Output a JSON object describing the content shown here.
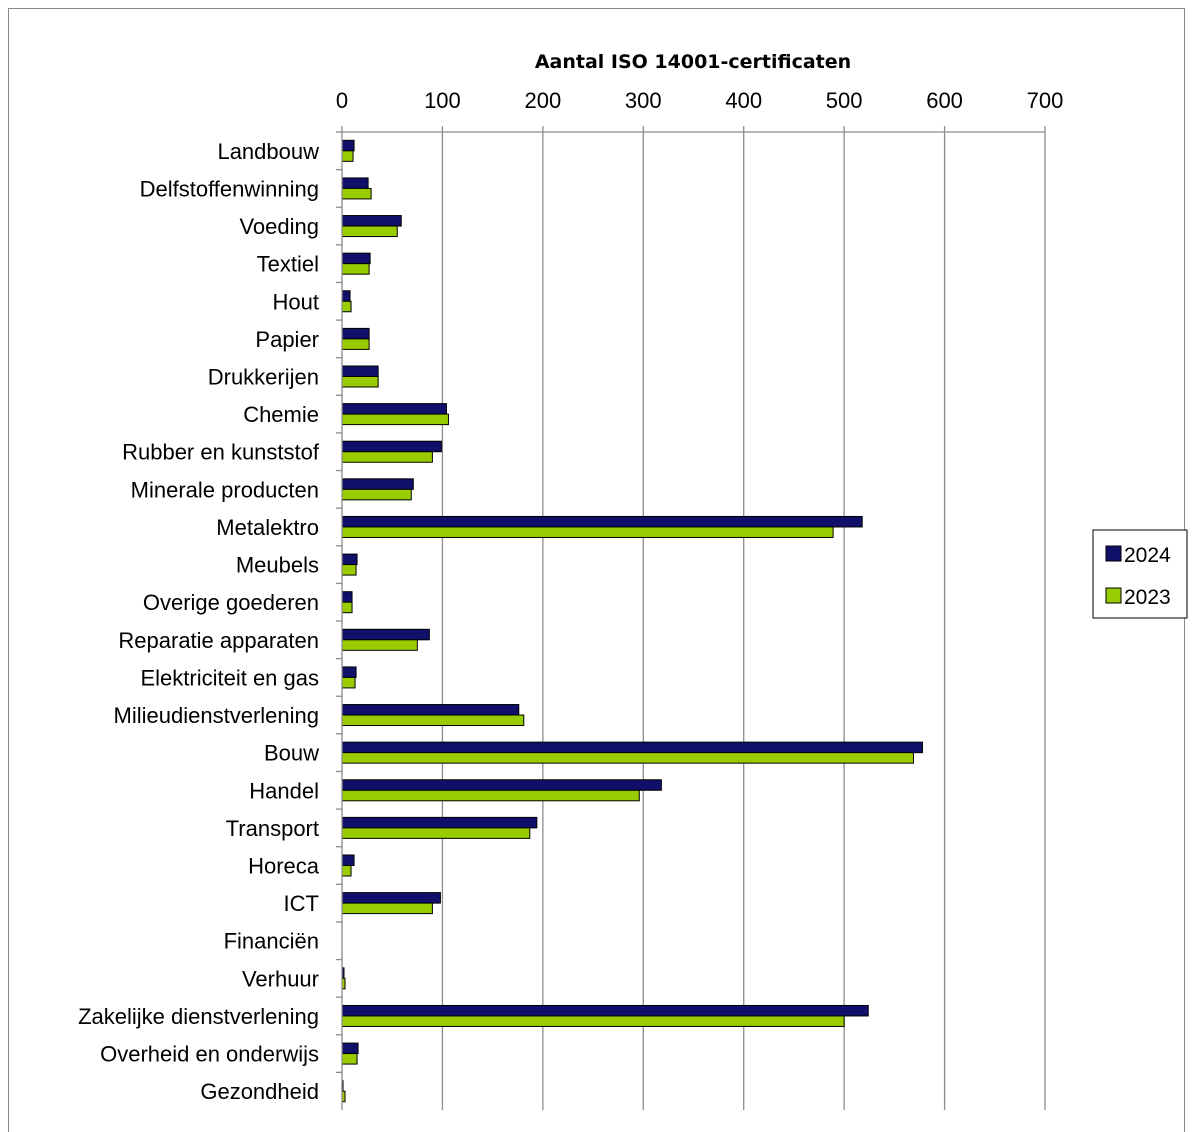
{
  "chart_data": {
    "type": "bar",
    "orientation": "horizontal",
    "title": "Aantal ISO 14001-certificaten",
    "axis_position": "top",
    "xlim": [
      0,
      700
    ],
    "ticks": [
      "0",
      "100",
      "200",
      "300",
      "400",
      "500",
      "600",
      "700"
    ],
    "tick_values": [
      0,
      100,
      200,
      300,
      400,
      500,
      600,
      700
    ],
    "grid": true,
    "legend_position": "right",
    "categories": [
      "Landbouw",
      "Delfstoffenwinning",
      "Voeding",
      "Textiel",
      "Hout",
      "Papier",
      "Drukkerijen",
      "Chemie",
      "Rubber en kunststof",
      "Minerale producten",
      "Metalektro",
      "Meubels",
      "Overige goederen",
      "Reparatie apparaten",
      "Elektriciteit en gas",
      "Milieudienstverlening",
      "Bouw",
      "Handel",
      "Transport",
      "Horeca",
      "ICT",
      "Financiën",
      "Verhuur",
      "Zakelijke dienstverlening",
      "Overheid en onderwijs",
      "Gezondheid"
    ],
    "series": [
      {
        "name": "2024",
        "color": "#10106b",
        "values": [
          12,
          26,
          59,
          28,
          8,
          27,
          36,
          104,
          99,
          71,
          518,
          15,
          10,
          87,
          14,
          176,
          578,
          318,
          194,
          12,
          98,
          0,
          2,
          524,
          16,
          1
        ]
      },
      {
        "name": "2023",
        "color": "#99cc00",
        "values": [
          11,
          29,
          55,
          27,
          9,
          27,
          36,
          106,
          90,
          69,
          489,
          14,
          10,
          75,
          13,
          181,
          569,
          296,
          187,
          9,
          90,
          0,
          3,
          500,
          15,
          3
        ]
      }
    ]
  }
}
